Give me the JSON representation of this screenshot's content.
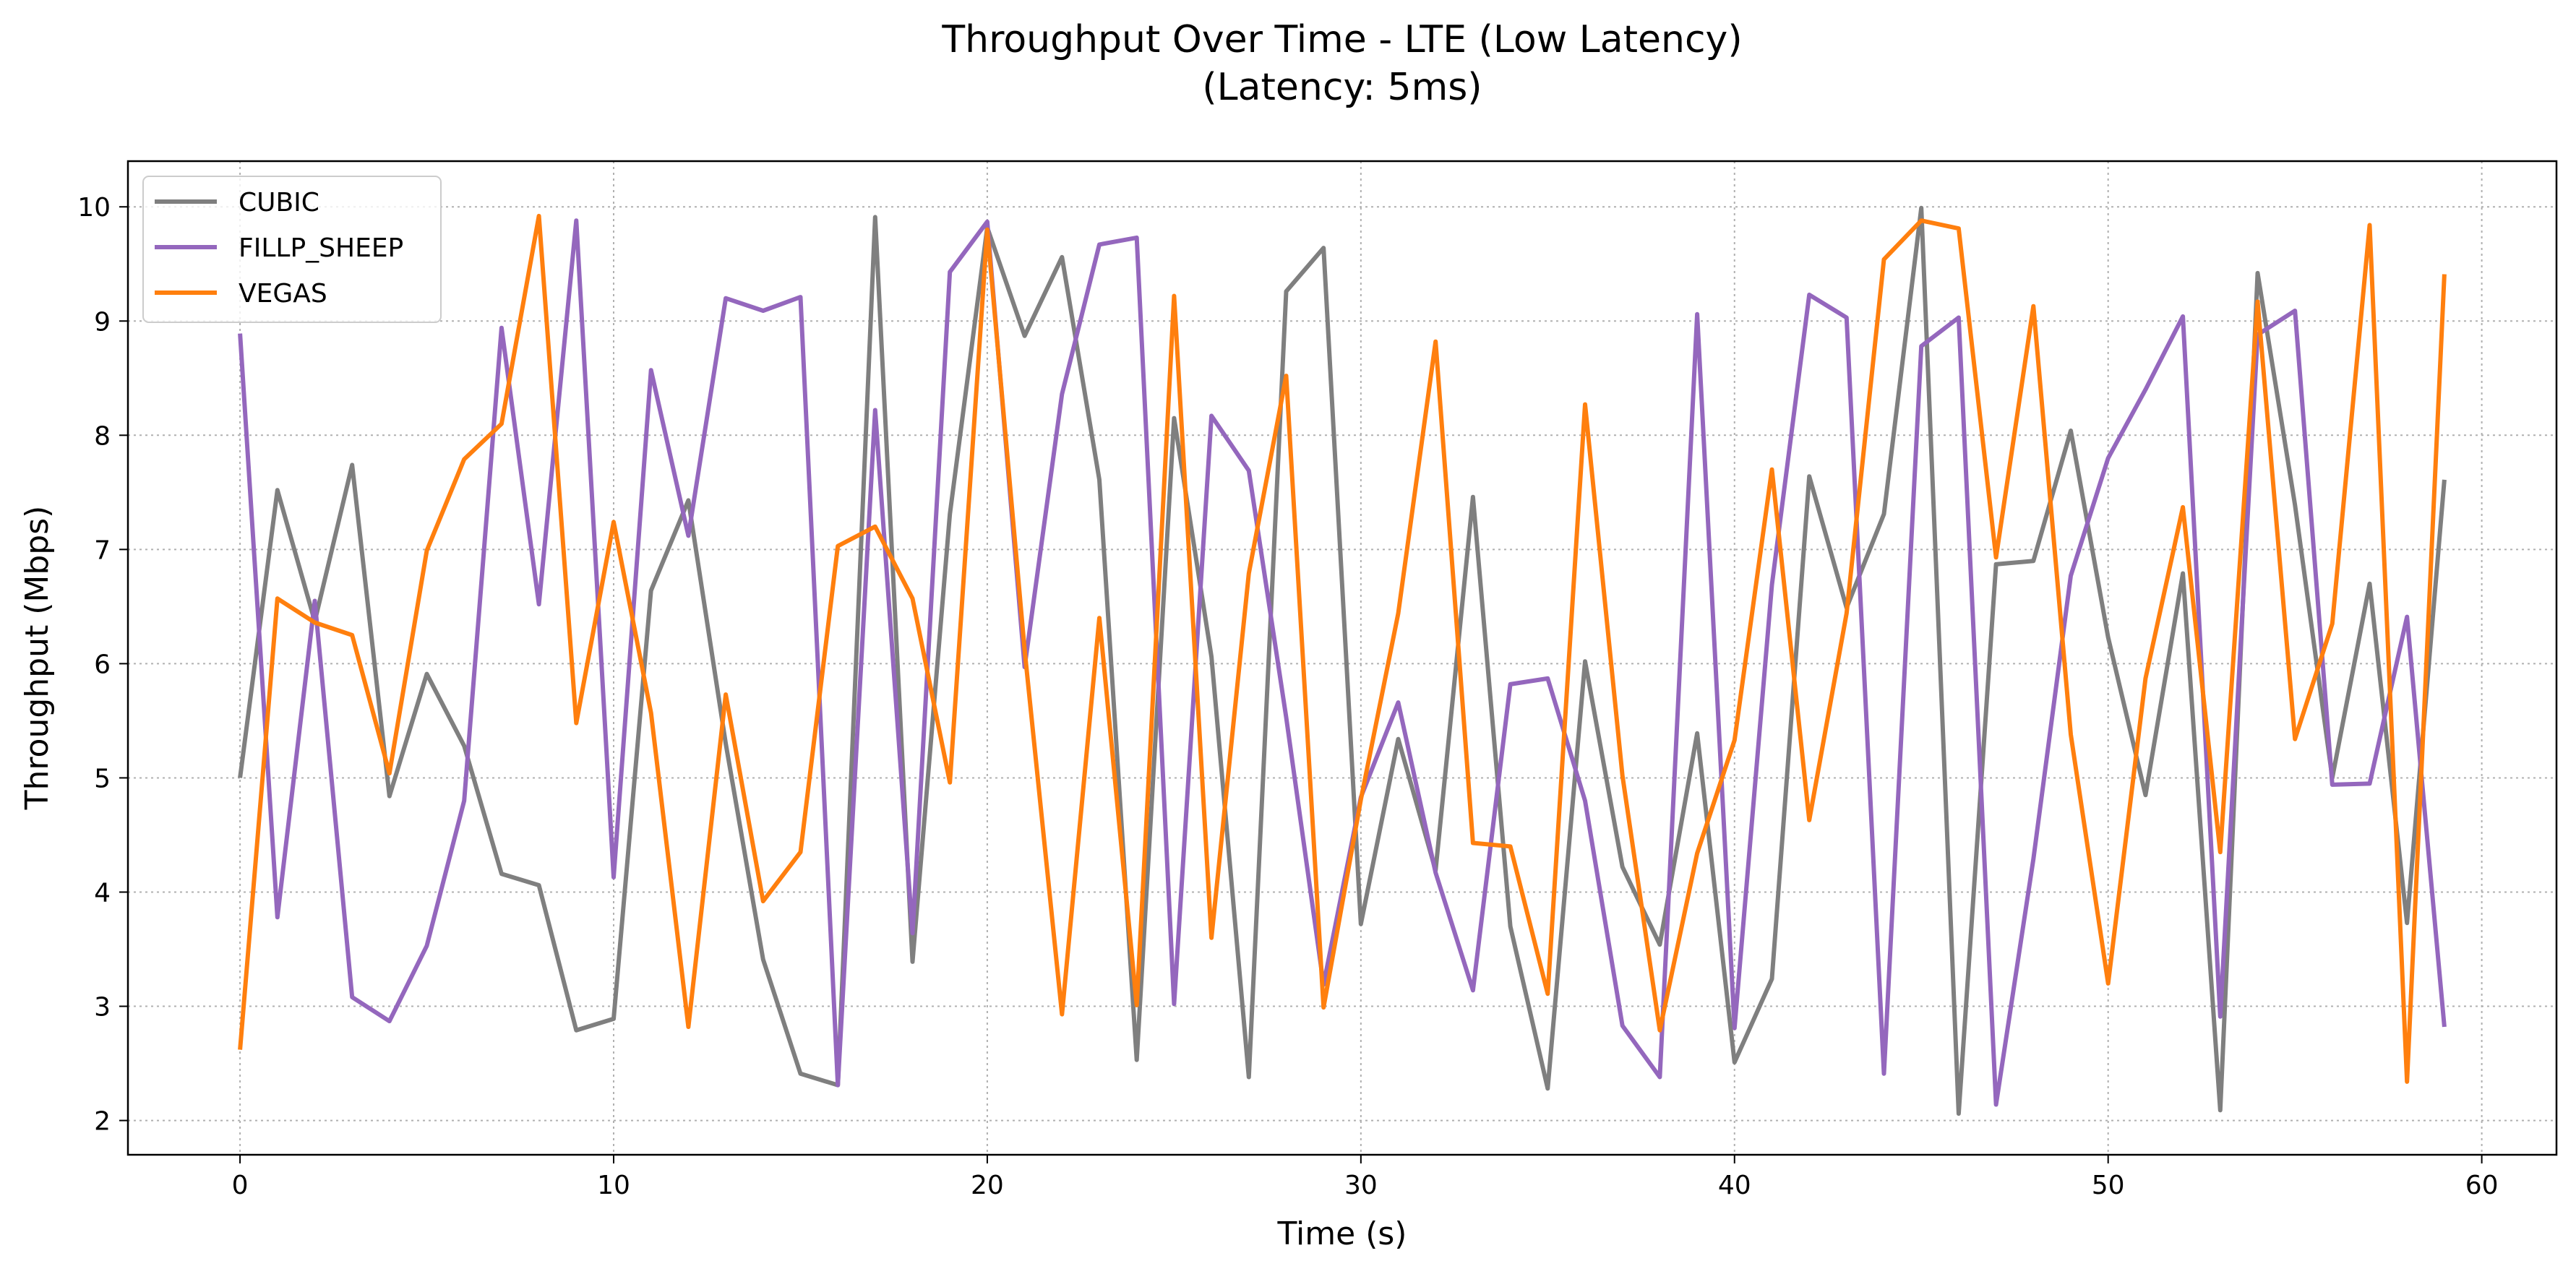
{
  "chart_data": {
    "type": "line",
    "title": "Throughput Over Time - LTE (Low Latency)",
    "subtitle": "(Latency: 5ms)",
    "xlabel": "Time (s)",
    "ylabel": "Throughput (Mbps)",
    "xlim": [
      -3,
      62
    ],
    "ylim": [
      1.7,
      10.4
    ],
    "xticks": [
      0,
      10,
      20,
      30,
      40,
      50,
      60
    ],
    "yticks": [
      2,
      3,
      4,
      5,
      6,
      7,
      8,
      9,
      10
    ],
    "grid": true,
    "legend_position": "top-left",
    "x": [
      0,
      1,
      2,
      3,
      4,
      5,
      6,
      7,
      8,
      9,
      10,
      11,
      12,
      13,
      14,
      15,
      16,
      17,
      18,
      19,
      20,
      21,
      22,
      23,
      24,
      25,
      26,
      27,
      28,
      29,
      30,
      31,
      32,
      33,
      34,
      35,
      36,
      37,
      38,
      39,
      40,
      41,
      42,
      43,
      44,
      45,
      46,
      47,
      48,
      49,
      50,
      51,
      52,
      53,
      54,
      55,
      56,
      57,
      58,
      59
    ],
    "series": [
      {
        "name": "CUBIC",
        "color": "#7f7f7f",
        "values": [
          5.0,
          7.52,
          6.37,
          7.74,
          4.84,
          5.91,
          5.28,
          4.16,
          4.06,
          2.79,
          2.89,
          6.64,
          7.43,
          5.3,
          3.41,
          2.41,
          2.31,
          9.91,
          3.39,
          7.31,
          9.82,
          8.87,
          9.56,
          7.61,
          2.53,
          8.15,
          6.06,
          2.38,
          9.26,
          9.64,
          3.72,
          5.34,
          4.19,
          7.46,
          3.7,
          2.28,
          6.02,
          4.22,
          3.54,
          5.39,
          2.51,
          3.24,
          7.64,
          6.49,
          7.31,
          9.99,
          2.06,
          6.87,
          6.9,
          8.04,
          6.23,
          4.85,
          6.79,
          2.09,
          9.42,
          7.39,
          5.0,
          6.7,
          3.73,
          7.61
        ]
      },
      {
        "name": "FILLP_SHEEP",
        "color": "#9467bd",
        "values": [
          8.89,
          3.78,
          6.55,
          3.08,
          2.87,
          3.53,
          4.8,
          8.94,
          6.52,
          9.88,
          4.13,
          8.57,
          7.12,
          9.2,
          9.09,
          9.21,
          2.31,
          8.22,
          3.64,
          9.43,
          9.87,
          5.97,
          8.36,
          9.67,
          9.73,
          3.02,
          8.17,
          7.69,
          5.53,
          3.19,
          4.83,
          5.66,
          4.17,
          3.14,
          5.82,
          5.87,
          4.8,
          2.83,
          2.38,
          9.06,
          2.81,
          6.69,
          9.23,
          9.03,
          2.41,
          8.78,
          9.03,
          2.14,
          4.29,
          6.77,
          7.8,
          8.4,
          9.04,
          2.91,
          8.88,
          9.09,
          4.94,
          4.95,
          6.41,
          2.82
        ]
      },
      {
        "name": "VEGAS",
        "color": "#ff7f0e",
        "values": [
          2.62,
          6.57,
          6.36,
          6.25,
          5.04,
          6.99,
          7.79,
          8.1,
          9.92,
          5.48,
          7.24,
          5.57,
          2.82,
          5.73,
          3.92,
          4.35,
          7.03,
          7.2,
          6.57,
          4.96,
          9.8,
          6.12,
          2.93,
          6.4,
          3.01,
          9.22,
          3.6,
          6.79,
          8.52,
          2.99,
          4.81,
          6.44,
          8.82,
          4.43,
          4.4,
          3.11,
          8.27,
          5.02,
          2.79,
          4.34,
          5.33,
          7.7,
          4.63,
          6.44,
          9.54,
          9.88,
          9.81,
          6.93,
          9.13,
          5.38,
          3.2,
          5.87,
          7.37,
          4.35,
          9.17,
          5.34,
          6.35,
          9.84,
          2.34,
          9.41
        ]
      }
    ]
  }
}
